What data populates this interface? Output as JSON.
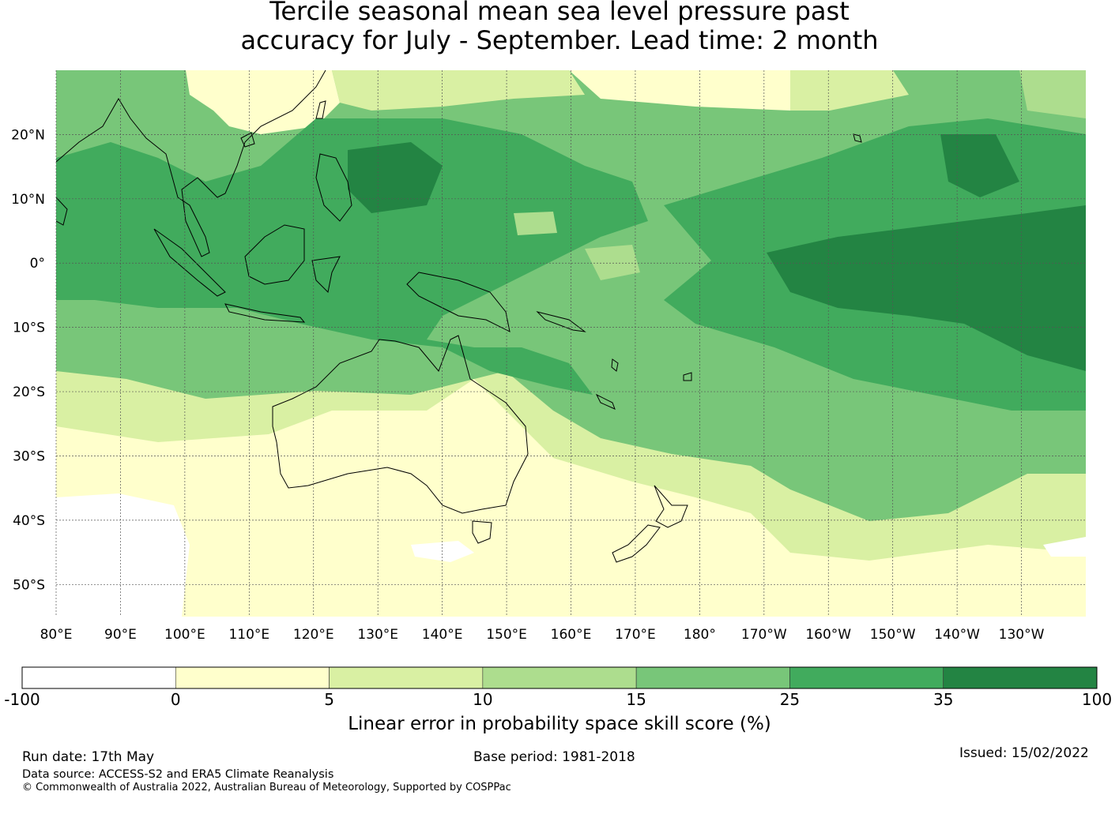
{
  "title": {
    "line1": "Tercile seasonal mean sea level pressure past",
    "line2": "accuracy for July - September. Lead time: 2 month"
  },
  "map": {
    "lon_labels": [
      "80°E",
      "90°E",
      "100°E",
      "110°E",
      "120°E",
      "130°E",
      "140°E",
      "150°E",
      "160°E",
      "170°E",
      "180°",
      "170°W",
      "160°W",
      "150°W",
      "140°W",
      "130°W"
    ],
    "lon_values": [
      80,
      90,
      100,
      110,
      120,
      130,
      140,
      150,
      160,
      170,
      180,
      190,
      200,
      210,
      220,
      230
    ],
    "lat_labels": [
      "20°N",
      "10°N",
      "0°",
      "10°S",
      "20°S",
      "30°S",
      "40°S",
      "50°S"
    ],
    "lat_values": [
      20,
      10,
      0,
      -10,
      -20,
      -30,
      -40,
      -50
    ],
    "lon_range": [
      80,
      240
    ],
    "lat_range": [
      -55,
      30
    ],
    "grid": true
  },
  "colorbar": {
    "ticks": [
      "-100",
      "0",
      "5",
      "10",
      "15",
      "25",
      "35",
      "100"
    ],
    "colors": [
      "#ffffff",
      "#ffffcc",
      "#d9f0a3",
      "#addd8e",
      "#78c679",
      "#41ab5d",
      "#238443"
    ],
    "label": "Linear error in probability space skill score (%)"
  },
  "footer": {
    "run_date": "Run date: 17th May",
    "base_period": "Base period: 1981-2018",
    "issued": "Issued: 15/02/2022",
    "data_source": "Data source: ACCESS-S2 and ERA5 Climate Reanalysis",
    "copyright": "© Commonwealth of Australia 2022, Australian Bureau of Meteorology, Supported by COSPPac"
  }
}
